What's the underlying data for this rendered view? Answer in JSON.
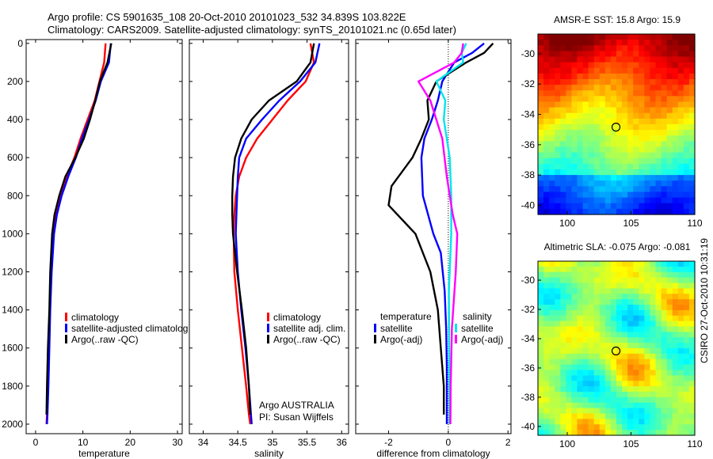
{
  "header": {
    "line1": "Argo profile: CS 5901635_108 20-Oct-2010 20101023_532 34.839S 103.822E",
    "line2": "Climatology: CARS2009. Satellite-adjusted climatology: synTS_20101021.nc (0.65d later)"
  },
  "colors": {
    "climatology": "#ff0000",
    "satellite": "#0000ff",
    "argo": "#000000",
    "sal_sat": "#00e5ee",
    "sal_argo": "#ff00ff"
  },
  "chart_data": [
    {
      "type": "line",
      "panel": "temperature",
      "xlabel": "temperature",
      "xlim": [
        -2,
        31
      ],
      "ylim": [
        2050,
        -20
      ],
      "xticks": [
        0,
        10,
        20,
        30
      ],
      "yticks": [
        0,
        200,
        400,
        600,
        800,
        1000,
        1200,
        1400,
        1600,
        1800,
        2000
      ],
      "legend": [
        "climatology",
        "satellite-adjusted climatolog",
        "Argo(..raw -QC)"
      ],
      "series": [
        {
          "name": "climatology",
          "color": "#ff0000",
          "x": [
            14.8,
            14.5,
            13.5,
            12.5,
            11.0,
            9.5,
            8.2,
            6.6,
            5.2,
            4.3,
            3.8,
            3.3,
            3.0,
            2.8,
            2.6,
            2.4,
            2.3
          ],
          "y": [
            0,
            100,
            200,
            300,
            400,
            500,
            600,
            700,
            800,
            900,
            1000,
            1200,
            1400,
            1600,
            1800,
            1950,
            2000
          ]
        },
        {
          "name": "satellite-adjusted climatolog",
          "color": "#0000ff",
          "x": [
            15.9,
            15.5,
            13.8,
            12.7,
            11.3,
            9.8,
            8.5,
            6.9,
            5.5,
            4.5,
            3.9,
            3.4,
            3.1,
            2.9,
            2.7,
            2.5,
            2.4
          ],
          "y": [
            0,
            100,
            200,
            300,
            400,
            500,
            600,
            700,
            800,
            900,
            1000,
            1200,
            1400,
            1600,
            1800,
            1950,
            2000
          ]
        },
        {
          "name": "Argo(..raw -QC)",
          "color": "#000000",
          "x": [
            16.0,
            15.2,
            13.6,
            12.6,
            11.5,
            10.2,
            8.4,
            6.3,
            5.0,
            4.0,
            3.5,
            3.1,
            2.9,
            2.6,
            2.4,
            2.3
          ],
          "y": [
            0,
            100,
            200,
            300,
            400,
            500,
            600,
            700,
            800,
            900,
            1000,
            1200,
            1400,
            1600,
            1800,
            1950
          ]
        }
      ]
    },
    {
      "type": "line",
      "panel": "salinity",
      "xlabel": "salinity",
      "xlim": [
        33.8,
        36.1
      ],
      "ylim": [
        2050,
        -20
      ],
      "xticks": [
        34,
        34.5,
        35,
        35.5,
        36
      ],
      "legend": [
        "climatology",
        "satellite adj. clim.",
        "Argo(..raw -QC)"
      ],
      "annotation": [
        "Argo AUSTRALIA",
        "PI: Susan Wijffels"
      ],
      "series": [
        {
          "name": "climatology",
          "color": "#ff0000",
          "x": [
            35.55,
            35.6,
            35.48,
            35.22,
            35.0,
            34.78,
            34.62,
            34.52,
            34.47,
            34.45,
            34.44,
            34.45,
            34.5,
            34.56,
            34.62,
            34.66,
            34.68
          ],
          "y": [
            0,
            100,
            200,
            300,
            400,
            500,
            600,
            700,
            800,
            900,
            1000,
            1200,
            1400,
            1600,
            1800,
            1950,
            2000
          ]
        },
        {
          "name": "satellite adj. clim.",
          "color": "#0000ff",
          "x": [
            35.68,
            35.62,
            35.4,
            35.1,
            34.85,
            34.62,
            34.52,
            34.5,
            34.49,
            34.48,
            34.47,
            34.5,
            34.55,
            34.61,
            34.66,
            34.69,
            34.7
          ],
          "y": [
            0,
            100,
            200,
            300,
            400,
            500,
            600,
            700,
            800,
            900,
            1000,
            1200,
            1400,
            1600,
            1800,
            1950,
            2000
          ]
        },
        {
          "name": "Argo(..raw -QC)",
          "color": "#000000",
          "x": [
            35.6,
            35.55,
            35.35,
            34.95,
            34.7,
            34.55,
            34.46,
            34.43,
            34.42,
            34.42,
            34.43,
            34.49,
            34.56,
            34.62,
            34.66,
            34.68
          ],
          "y": [
            0,
            100,
            200,
            300,
            400,
            500,
            600,
            700,
            800,
            900,
            1000,
            1200,
            1400,
            1600,
            1800,
            1950
          ]
        }
      ]
    },
    {
      "type": "line",
      "panel": "difference",
      "xlabel": "difference from climatology",
      "xlim": [
        -3.1,
        2.1
      ],
      "ylim": [
        2050,
        -20
      ],
      "xticks": [
        -2,
        0,
        2
      ],
      "zero_line": true,
      "legend_groups": [
        {
          "heading": "temperature",
          "items": [
            "satellite",
            "Argo(-adj)"
          ]
        },
        {
          "heading": "salinity",
          "items": [
            "satellite",
            "Argo(-adj)"
          ]
        }
      ],
      "series": [
        {
          "name": "satellite",
          "group": "temperature",
          "color": "#0000ff",
          "x": [
            1.2,
            0.8,
            0.2,
            -0.2,
            -0.35,
            -0.55,
            -0.8,
            -0.9,
            -0.85,
            -0.5,
            -0.25,
            -0.12,
            -0.07,
            -0.05,
            -0.05,
            -0.05
          ],
          "y": [
            0,
            50,
            100,
            200,
            300,
            400,
            500,
            600,
            800,
            1000,
            1100,
            1300,
            1500,
            1700,
            1900,
            2000
          ]
        },
        {
          "name": "Argo(-adj)",
          "group": "temperature",
          "color": "#000000",
          "x": [
            1.5,
            1.2,
            0.6,
            -0.4,
            -0.7,
            -0.65,
            -0.9,
            -1.2,
            -1.9,
            -2.0,
            -1.1,
            -0.6,
            -0.35,
            -0.25,
            -0.15,
            -0.15
          ],
          "y": [
            0,
            50,
            100,
            200,
            300,
            400,
            500,
            600,
            750,
            850,
            1000,
            1200,
            1400,
            1600,
            1800,
            1950
          ]
        },
        {
          "name": "satellite",
          "group": "salinity",
          "color": "#00e5ee",
          "x": [
            0.6,
            0.45,
            0.5,
            -0.4,
            -0.1,
            -0.15,
            0.05,
            0.1,
            0.1,
            0.02,
            0.03,
            0.04,
            0.04
          ],
          "y": [
            0,
            50,
            100,
            200,
            300,
            400,
            600,
            800,
            1000,
            1300,
            1600,
            1900,
            2000
          ]
        },
        {
          "name": "Argo(-adj)",
          "group": "salinity",
          "color": "#ff00ff",
          "x": [
            0.5,
            0.45,
            0.2,
            -1.0,
            -0.6,
            -0.2,
            -0.05,
            0.15,
            0.3,
            0.25,
            0.12,
            0.08,
            0.07
          ],
          "y": [
            0,
            50,
            100,
            200,
            300,
            500,
            700,
            900,
            1000,
            1200,
            1500,
            1800,
            2000
          ]
        }
      ]
    },
    {
      "type": "heatmap",
      "panel": "sst",
      "title": "AMSR-E SST: 15.8 Argo: 15.9",
      "xlim": [
        97.7,
        110
      ],
      "ylim": [
        -40.6,
        -28.7
      ],
      "xticks": [
        100,
        105,
        110
      ],
      "yticks": [
        -30,
        -32,
        -34,
        -36,
        -38,
        -40
      ],
      "marker": {
        "lon": 103.822,
        "lat": -34.839
      }
    },
    {
      "type": "heatmap",
      "panel": "sla",
      "title": "Altimetric SLA: -0.075 Argo: -0.081",
      "xlim": [
        97.7,
        110
      ],
      "ylim": [
        -40.6,
        -28.7
      ],
      "xticks": [
        100,
        105,
        110
      ],
      "yticks": [
        -30,
        -32,
        -34,
        -36,
        -38,
        -40
      ],
      "marker": {
        "lon": 103.822,
        "lat": -34.839
      }
    }
  ],
  "footer": {
    "credit": "CSIRO 27-Oct-2010 10:31:19"
  }
}
